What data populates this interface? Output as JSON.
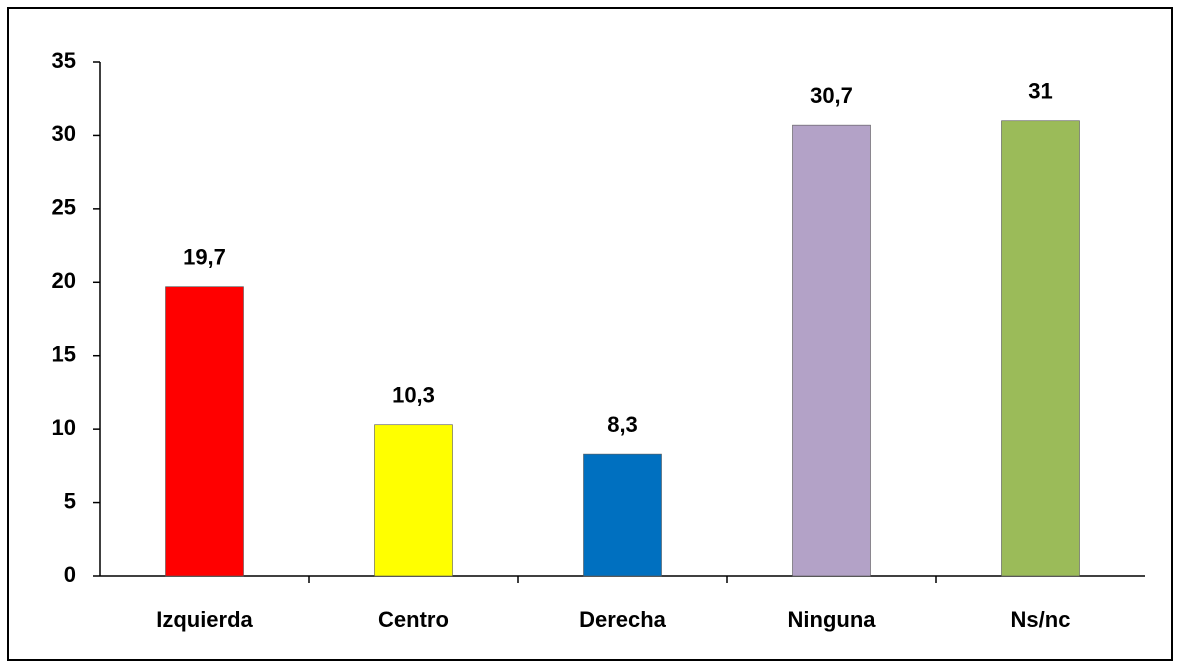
{
  "chart_data": {
    "type": "bar",
    "categories": [
      "Izquierda",
      "Centro",
      "Derecha",
      "Ninguna",
      "Ns/nc"
    ],
    "values": [
      19.7,
      10.3,
      8.3,
      30.7,
      31
    ],
    "value_labels": [
      "19,7",
      "10,3",
      "8,3",
      "30,7",
      "31"
    ],
    "colors": [
      "#ff0000",
      "#ffff00",
      "#0070c0",
      "#b3a2c7",
      "#9bbb59"
    ],
    "ylim": [
      0,
      35
    ],
    "yticks": [
      0,
      5,
      10,
      15,
      20,
      25,
      30,
      35
    ],
    "grid": false
  }
}
